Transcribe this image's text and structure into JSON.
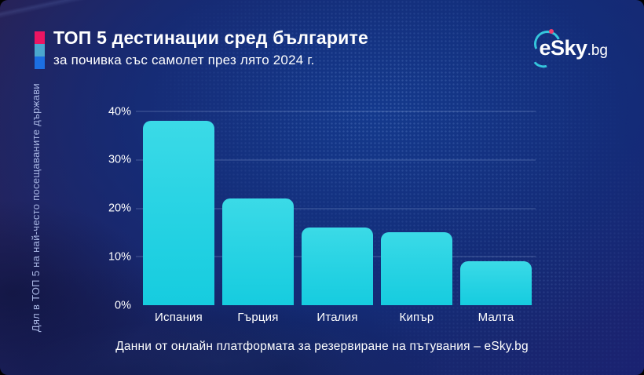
{
  "header": {
    "title": "ТОП 5 дестинации сред българите",
    "subtitle": "за почивка със самолет през лято 2024 г."
  },
  "logo": {
    "brand": "eSky",
    "tld": ".bg"
  },
  "chart_data": {
    "type": "bar",
    "title": "ТОП 5 дестинации сред българите за почивка със самолет през лято 2024 г.",
    "categories": [
      "Испания",
      "Гърция",
      "Италия",
      "Кипър",
      "Малта"
    ],
    "values": [
      38,
      22,
      16,
      15,
      9
    ],
    "unit": "%",
    "xlabel": "",
    "ylabel": "Дял в ТОП 5 на най-често посещаваните държави",
    "ylim": [
      0,
      40
    ],
    "yticks": [
      0,
      10,
      20,
      30,
      40
    ],
    "ytick_labels": [
      "0%",
      "10%",
      "20%",
      "30%",
      "40%"
    ],
    "grid": "horizontal",
    "legend": "none",
    "bar_color": "#2BD4E4"
  },
  "footer": {
    "source": "Данни от онлайн платформата за резервиране на пътувания – eSky.bg"
  },
  "colors": {
    "accent_pink": "#EC1562",
    "accent_cyan": "#4BA7CE",
    "accent_blue": "#1C6FE2",
    "logo_pink": "#EE3F6D",
    "logo_cyan": "#35C6DC",
    "grid": "rgba(175,195,235,0.32)",
    "axis_text": "#A7B4E2",
    "background_center": "#14398C",
    "background_corner": "#282257"
  }
}
